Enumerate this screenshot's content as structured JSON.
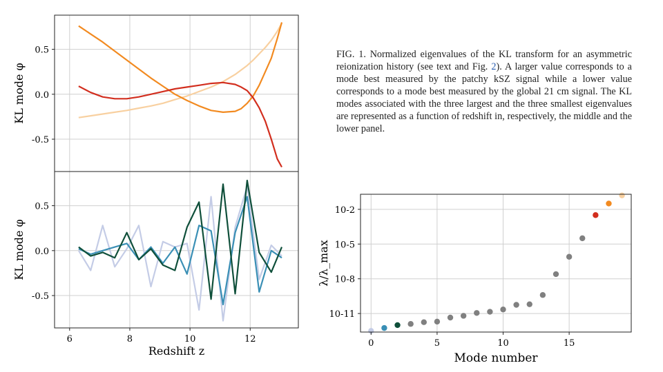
{
  "caption": {
    "prefix": "FIG. 1.  Normalized eigenvalues of the KL transform for an asymmetric reionization history (see text and Fig. ",
    "ref": "2",
    "suffix": "). A larger value corresponds to a mode best measured by the patchy kSZ signal while a lower value corresponds to a mode best measured by the global 21 cm signal. The KL modes associated with the three largest and the three smallest eigenvalues are represented as a function of redshift in, respectively, the middle and the lower panel."
  },
  "chart_data": [
    {
      "type": "line",
      "panel": "top",
      "ylabel": "KL mode φ",
      "xlim": [
        5.5,
        13.6
      ],
      "ylim": [
        -0.86,
        0.88
      ],
      "yticks": [
        0.5,
        0.0,
        -0.5
      ],
      "ytick_labels": [
        "0.5",
        "0.0",
        "-0.5"
      ],
      "xgrid": [
        6,
        8,
        10,
        12
      ],
      "x": [
        6.3,
        6.7,
        7.1,
        7.5,
        7.9,
        8.3,
        8.7,
        9.1,
        9.5,
        9.9,
        10.3,
        10.7,
        11.1,
        11.5,
        11.7,
        11.9,
        12.1,
        12.3,
        12.5,
        12.7,
        12.9,
        13.05
      ],
      "series": [
        {
          "color": "#f8d0a0",
          "values": [
            -0.26,
            -0.24,
            -0.22,
            -0.2,
            -0.18,
            -0.155,
            -0.13,
            -0.1,
            -0.06,
            -0.02,
            0.03,
            0.08,
            0.14,
            0.22,
            0.27,
            0.32,
            0.38,
            0.45,
            0.52,
            0.6,
            0.7,
            0.79
          ]
        },
        {
          "color": "#f28a20",
          "values": [
            0.76,
            0.67,
            0.58,
            0.48,
            0.38,
            0.28,
            0.18,
            0.09,
            0.0,
            -0.07,
            -0.13,
            -0.18,
            -0.2,
            -0.19,
            -0.16,
            -0.1,
            -0.02,
            0.1,
            0.25,
            0.4,
            0.62,
            0.8
          ]
        },
        {
          "color": "#d22e1e",
          "values": [
            0.09,
            0.02,
            -0.03,
            -0.05,
            -0.05,
            -0.03,
            0.0,
            0.03,
            0.06,
            0.08,
            0.1,
            0.12,
            0.13,
            0.11,
            0.08,
            0.04,
            -0.04,
            -0.15,
            -0.3,
            -0.5,
            -0.72,
            -0.81
          ]
        }
      ]
    },
    {
      "type": "line",
      "panel": "middle",
      "ylabel": "KL mode φ",
      "xlabel": "Redshift z",
      "xlim": [
        5.5,
        13.6
      ],
      "ylim": [
        -0.86,
        0.88
      ],
      "yticks": [
        0.5,
        0.0,
        -0.5
      ],
      "ytick_labels": [
        "0.5",
        "0.0",
        "-0.5"
      ],
      "xticks": [
        6,
        8,
        10,
        12
      ],
      "xtick_labels": [
        "6",
        "8",
        "10",
        "12"
      ],
      "x": [
        6.3,
        6.7,
        7.1,
        7.5,
        7.9,
        8.3,
        8.7,
        9.1,
        9.5,
        9.9,
        10.3,
        10.7,
        11.1,
        11.5,
        11.9,
        12.3,
        12.7,
        13.05
      ],
      "series": [
        {
          "color": "#c4cce6",
          "values": [
            0.0,
            -0.22,
            0.28,
            -0.18,
            0.02,
            0.28,
            -0.4,
            0.1,
            0.04,
            0.08,
            -0.66,
            0.6,
            -0.78,
            0.26,
            0.72,
            -0.32,
            0.06,
            -0.06
          ]
        },
        {
          "color": "#3a8fb5",
          "values": [
            0.02,
            -0.04,
            0.0,
            0.04,
            0.08,
            -0.1,
            0.04,
            -0.14,
            0.04,
            -0.26,
            0.28,
            0.22,
            -0.6,
            0.2,
            0.6,
            -0.46,
            0.0,
            -0.08
          ]
        },
        {
          "color": "#0f4f3a",
          "values": [
            0.04,
            -0.06,
            -0.02,
            -0.08,
            0.2,
            -0.1,
            0.02,
            -0.16,
            -0.22,
            0.26,
            0.54,
            -0.54,
            0.74,
            -0.48,
            0.78,
            -0.02,
            -0.24,
            0.04
          ]
        }
      ]
    },
    {
      "type": "scatter",
      "panel": "right",
      "ylabel": "λ/λ_max",
      "xlabel": "Mode number",
      "xlim": [
        -0.8,
        19.7
      ],
      "log_y": true,
      "ylim_log10": [
        -12.6,
        -0.7
      ],
      "yticks_log10": [
        -2,
        -5,
        -8,
        -11
      ],
      "ytick_labels": [
        "10-2",
        "10-5",
        "10-8",
        "10-11"
      ],
      "xticks": [
        0,
        5,
        10,
        15
      ],
      "xtick_labels": [
        "0",
        "5",
        "10",
        "15"
      ],
      "x": [
        0,
        1,
        2,
        3,
        4,
        5,
        6,
        7,
        8,
        9,
        10,
        11,
        12,
        13,
        14,
        15,
        16,
        17,
        18,
        19
      ],
      "y_log10": [
        -12.5,
        -12.25,
        -12.0,
        -11.9,
        -11.75,
        -11.7,
        -11.35,
        -11.2,
        -10.95,
        -10.85,
        -10.65,
        -10.25,
        -10.2,
        -9.4,
        -7.6,
        -6.1,
        -4.5,
        -2.5,
        -1.5,
        -0.8
      ],
      "colors": [
        "#c4cce6",
        "#3a8fb5",
        "#0f4f3a",
        "#808080",
        "#808080",
        "#808080",
        "#808080",
        "#808080",
        "#808080",
        "#808080",
        "#808080",
        "#808080",
        "#808080",
        "#808080",
        "#808080",
        "#808080",
        "#808080",
        "#d22e1e",
        "#f28a20",
        "#f8d0a0"
      ]
    }
  ]
}
